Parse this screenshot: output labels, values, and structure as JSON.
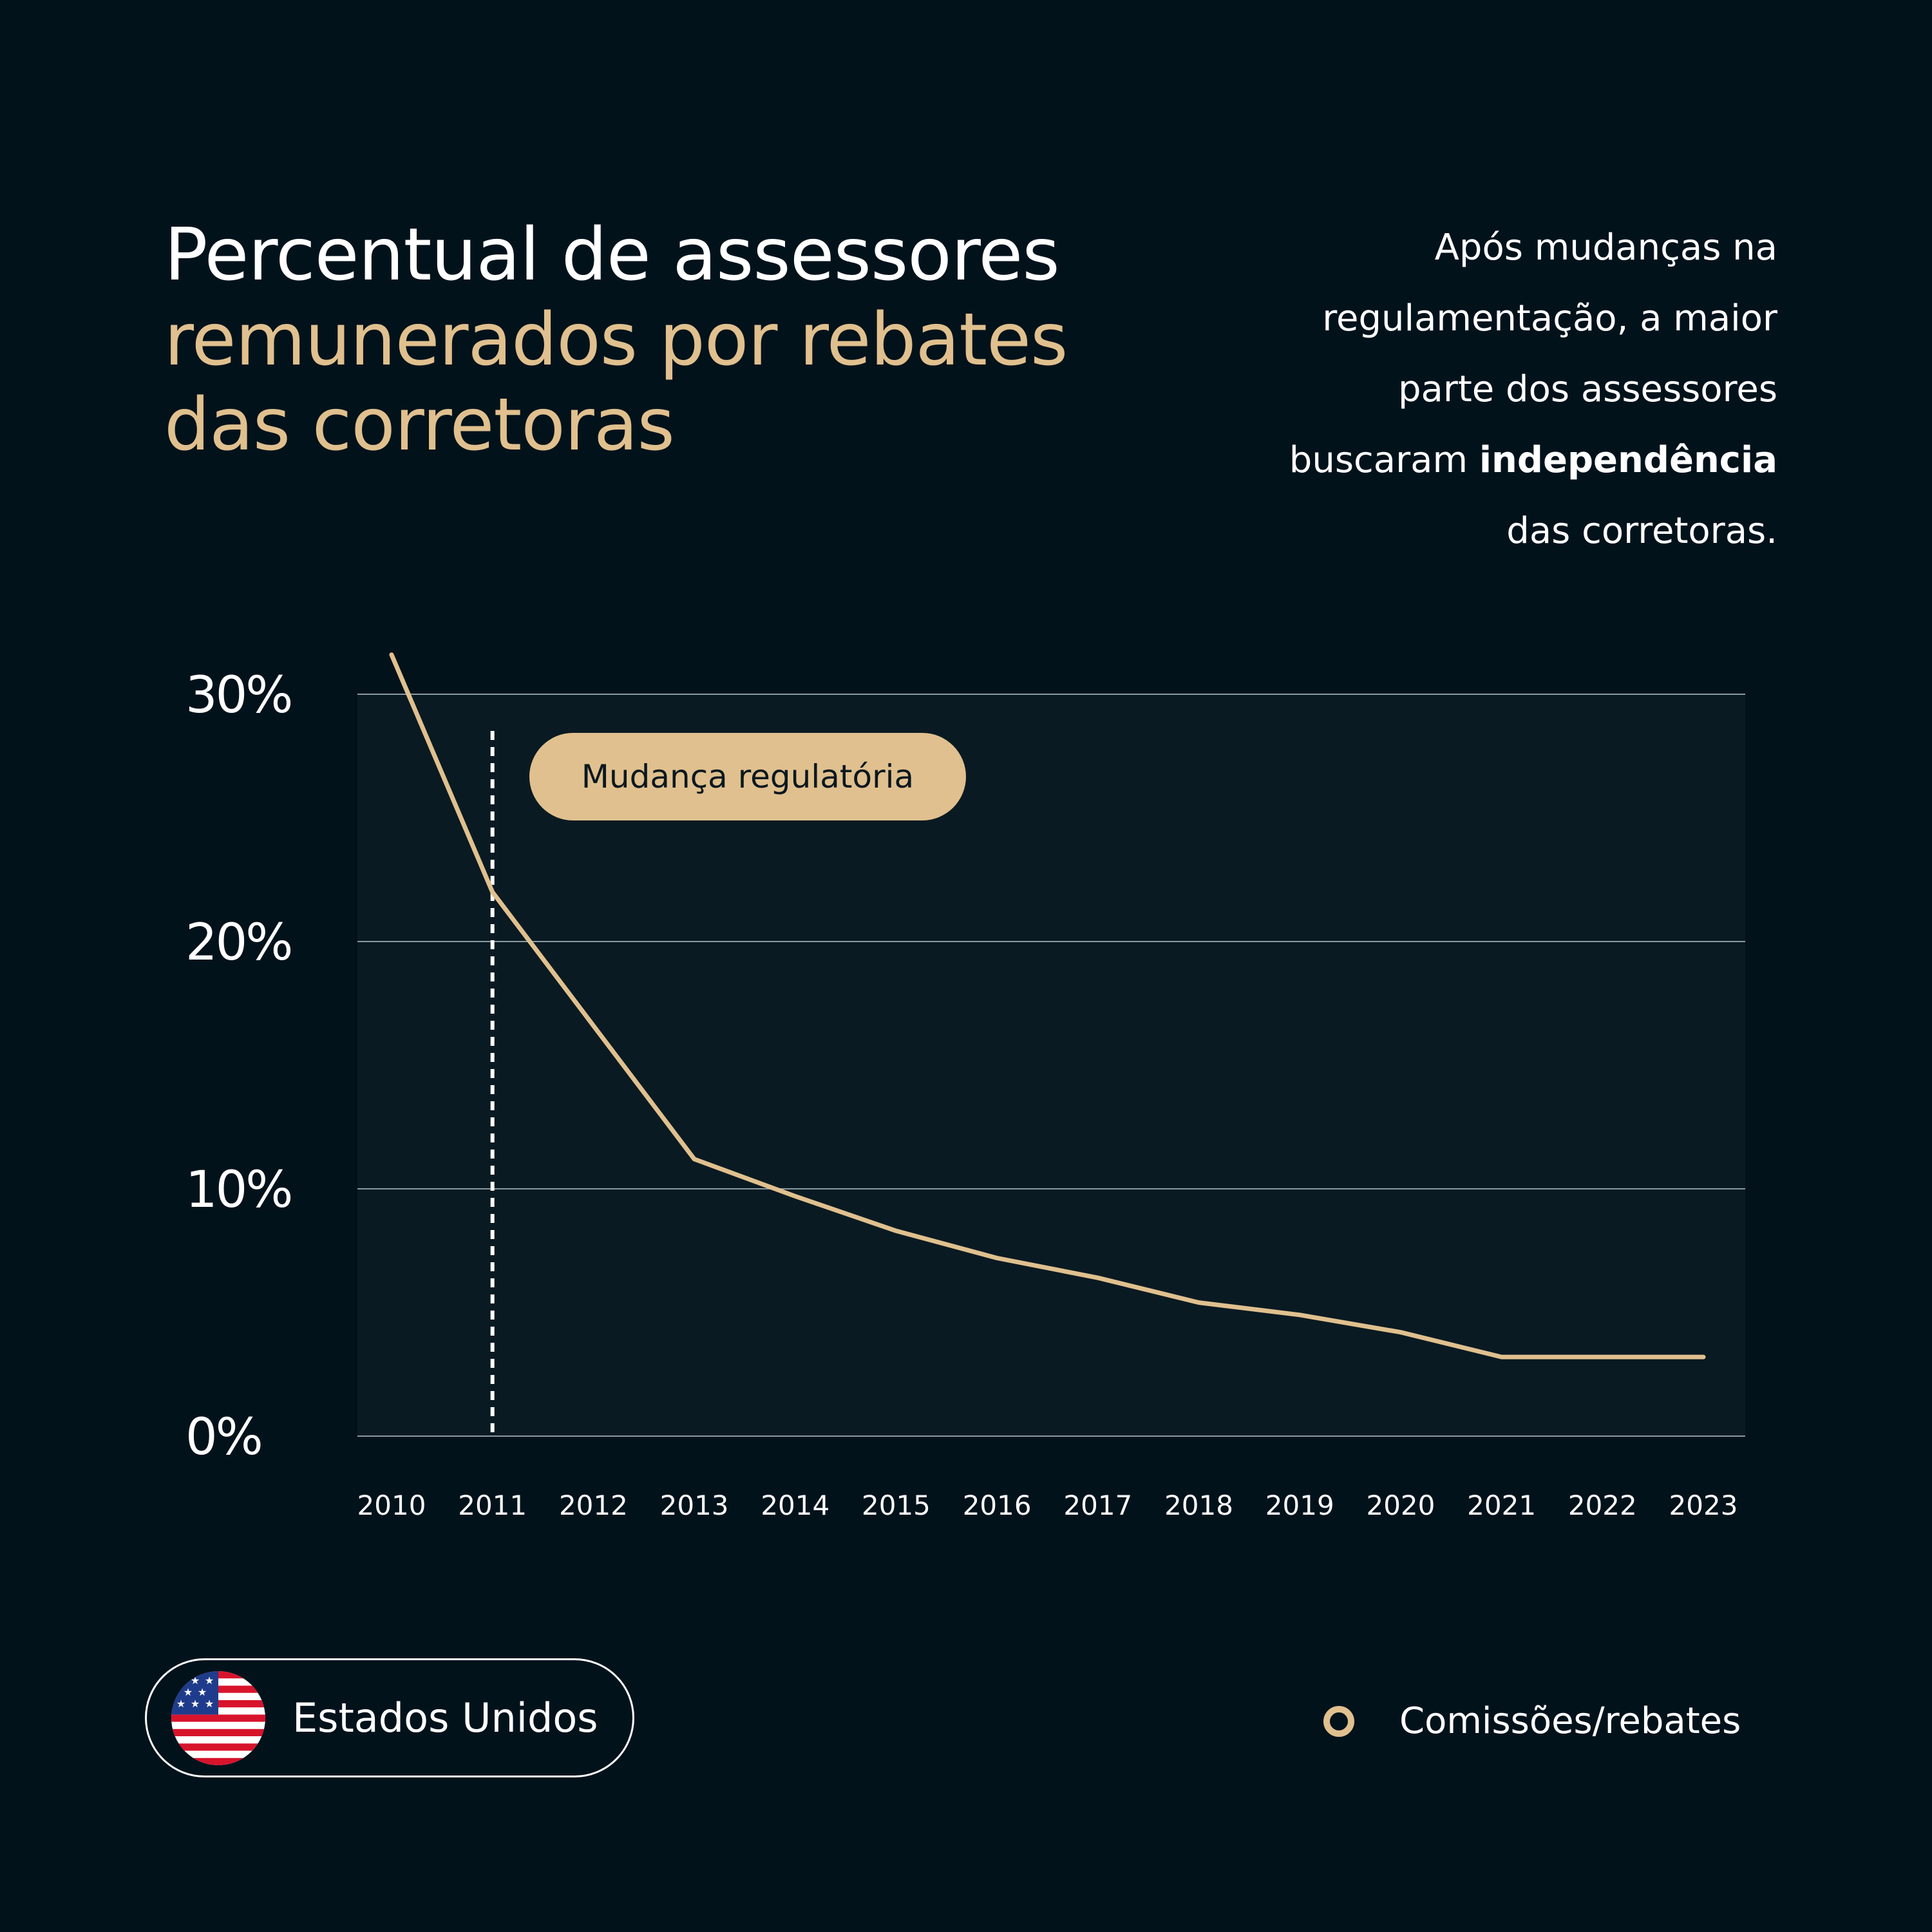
{
  "header": {
    "title_line1": "Percentual de assessores",
    "title_line2": "remunerados por rebates",
    "title_line3": "das corretoras"
  },
  "description": {
    "line1": "Após mudanças na",
    "line2": "regulamentação, a maior",
    "line3": "parte dos assessores",
    "line4_prefix": "buscaram ",
    "line4_bold": "independência",
    "line5": "das corretoras."
  },
  "country": {
    "label": "Estados Unidos",
    "flag_icon": "us-flag-icon"
  },
  "legend": {
    "label": "Comissões/rebates"
  },
  "colors": {
    "background": "#02121b",
    "plot_background": "#0a1a22",
    "accent": "#e0c08e",
    "grid": "#8a9aa2",
    "text": "#ffffff"
  },
  "chart_data": {
    "type": "line",
    "x": [
      2010,
      2011,
      2012,
      2013,
      2014,
      2015,
      2016,
      2017,
      2018,
      2019,
      2020,
      2021,
      2022,
      2023
    ],
    "x_tick_labels": [
      "2010",
      "2011",
      "2012",
      "2013",
      "2014",
      "2015",
      "2016",
      "2017",
      "2018",
      "2019",
      "2020",
      "2021",
      "2022",
      "2023"
    ],
    "series": [
      {
        "name": "Comissões/rebates",
        "points": [
          [
            2010,
            31.6
          ],
          [
            2011,
            22.0
          ],
          [
            2012,
            16.6
          ],
          [
            2013,
            11.2
          ],
          [
            2014,
            9.7
          ],
          [
            2015,
            8.3
          ],
          [
            2016,
            7.2
          ],
          [
            2017,
            6.4
          ],
          [
            2018,
            5.4
          ],
          [
            2019,
            4.9
          ],
          [
            2020,
            4.2
          ],
          [
            2021,
            3.2
          ],
          [
            2022,
            3.2
          ],
          [
            2023,
            3.2
          ]
        ]
      }
    ],
    "ylim": [
      0,
      30
    ],
    "y_ticks": [
      0,
      10,
      20,
      30
    ],
    "y_tick_labels": [
      "0%",
      "10%",
      "20%",
      "30%"
    ],
    "annotation": {
      "x": 2011,
      "label": "Mudança regulatória"
    },
    "grid": true,
    "legend_position": "bottom-right"
  }
}
